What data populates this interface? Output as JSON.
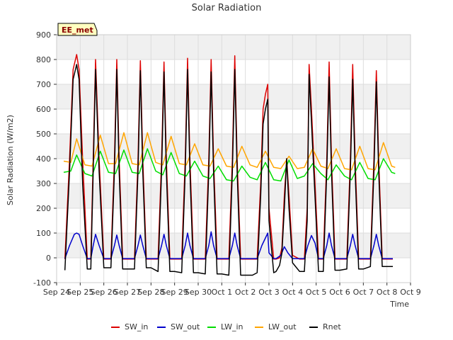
{
  "chart_data": {
    "type": "line",
    "title": "Solar Radiation",
    "xlabel": "Time",
    "ylabel": "Solar Radiation (W/m2)",
    "ylim": [
      -100,
      900
    ],
    "yticks": [
      -100,
      0,
      100,
      200,
      300,
      400,
      500,
      600,
      700,
      800,
      900
    ],
    "xlim": [
      0,
      15
    ],
    "xticks": [
      {
        "pos": 0,
        "label": "Sep 24"
      },
      {
        "pos": 1,
        "label": "Sep 25"
      },
      {
        "pos": 2,
        "label": "Sep 26"
      },
      {
        "pos": 3,
        "label": "Sep 27"
      },
      {
        "pos": 4,
        "label": "Sep 28"
      },
      {
        "pos": 5,
        "label": "Sep 29"
      },
      {
        "pos": 6,
        "label": "Sep 30"
      },
      {
        "pos": 7,
        "label": "Oct 1"
      },
      {
        "pos": 8,
        "label": "Oct 2"
      },
      {
        "pos": 9,
        "label": "Oct 3"
      },
      {
        "pos": 10,
        "label": "Oct 4"
      },
      {
        "pos": 11,
        "label": "Oct 5"
      },
      {
        "pos": 12,
        "label": "Oct 6"
      },
      {
        "pos": 13,
        "label": "Oct 7"
      },
      {
        "pos": 14,
        "label": "Oct 8"
      },
      {
        "pos": 15,
        "label": "Oct 9"
      }
    ],
    "annotation": "EE_met",
    "legend_placement": "bottom",
    "grid": true,
    "series": [
      {
        "name": "SW_in",
        "color": "#dd0000",
        "x": [
          0.35,
          0.55,
          0.7,
          0.85,
          0.95,
          1.1,
          1.3,
          1.45,
          1.55,
          1.65,
          1.8,
          2.0,
          2.3,
          2.45,
          2.55,
          2.65,
          2.8,
          3.0,
          3.3,
          3.45,
          3.55,
          3.65,
          3.8,
          4.0,
          4.3,
          4.45,
          4.55,
          4.65,
          4.8,
          5.0,
          5.3,
          5.45,
          5.55,
          5.65,
          5.8,
          6.0,
          6.3,
          6.45,
          6.55,
          6.65,
          6.8,
          7.0,
          7.3,
          7.45,
          7.55,
          7.65,
          7.8,
          8.0,
          8.3,
          8.5,
          8.65,
          8.75,
          8.85,
          8.95,
          9.0,
          9.2,
          9.3,
          9.45,
          9.55,
          9.65,
          9.75,
          9.85,
          10.0,
          10.3,
          10.5,
          10.62,
          10.7,
          10.8,
          10.95,
          11.1,
          11.3,
          11.45,
          11.55,
          11.65,
          11.8,
          12.0,
          12.3,
          12.45,
          12.55,
          12.65,
          12.8,
          13.0,
          13.3,
          13.45,
          13.55,
          13.65,
          13.8,
          14.0,
          14.25
        ],
        "y": [
          -5,
          400,
          760,
          820,
          760,
          400,
          -5,
          -5,
          400,
          800,
          400,
          -5,
          -5,
          400,
          800,
          400,
          -5,
          -5,
          -5,
          400,
          795,
          400,
          -5,
          -5,
          -5,
          400,
          790,
          400,
          -5,
          -5,
          -5,
          400,
          805,
          400,
          -5,
          -5,
          -5,
          400,
          800,
          400,
          -5,
          -5,
          -5,
          400,
          815,
          400,
          -5,
          -5,
          -5,
          -5,
          300,
          600,
          660,
          700,
          200,
          -5,
          -5,
          0,
          40,
          250,
          400,
          250,
          10,
          -5,
          -5,
          200,
          780,
          600,
          300,
          -5,
          -5,
          400,
          790,
          400,
          -5,
          -5,
          -5,
          400,
          780,
          400,
          -5,
          -5,
          -5,
          400,
          755,
          400,
          -5,
          -5,
          -5
        ]
      },
      {
        "name": "SW_out",
        "color": "#0000cc",
        "x": [
          0.35,
          0.55,
          0.75,
          0.85,
          0.95,
          1.1,
          1.3,
          1.45,
          1.55,
          1.65,
          1.8,
          2.0,
          2.3,
          2.45,
          2.55,
          2.65,
          2.8,
          3.0,
          3.3,
          3.45,
          3.55,
          3.65,
          3.8,
          4.0,
          4.3,
          4.45,
          4.55,
          4.65,
          4.8,
          5.0,
          5.3,
          5.45,
          5.55,
          5.65,
          5.8,
          6.0,
          6.3,
          6.45,
          6.55,
          6.65,
          6.8,
          7.0,
          7.3,
          7.45,
          7.55,
          7.65,
          7.8,
          8.0,
          8.3,
          8.5,
          8.7,
          8.85,
          8.95,
          9.0,
          9.2,
          9.3,
          9.5,
          9.65,
          9.8,
          10.0,
          10.3,
          10.5,
          10.65,
          10.8,
          10.95,
          11.1,
          11.3,
          11.45,
          11.55,
          11.65,
          11.8,
          12.0,
          12.3,
          12.45,
          12.55,
          12.65,
          12.8,
          13.0,
          13.3,
          13.45,
          13.55,
          13.65,
          13.8,
          14.0,
          14.25
        ],
        "y": [
          -3,
          50,
          95,
          100,
          95,
          50,
          -3,
          -3,
          50,
          95,
          50,
          -3,
          -3,
          50,
          92,
          50,
          -3,
          -3,
          -3,
          50,
          92,
          50,
          -3,
          -3,
          -3,
          50,
          95,
          50,
          -3,
          -3,
          -3,
          50,
          100,
          50,
          -3,
          -3,
          -3,
          50,
          105,
          50,
          -3,
          -3,
          -3,
          50,
          100,
          50,
          -3,
          -3,
          -3,
          -3,
          50,
          80,
          100,
          20,
          -3,
          -3,
          10,
          45,
          20,
          -3,
          -3,
          -3,
          50,
          90,
          60,
          -3,
          -3,
          50,
          100,
          50,
          -3,
          -3,
          -3,
          50,
          95,
          50,
          -3,
          -3,
          -3,
          50,
          95,
          50,
          -3,
          -3,
          -3
        ]
      },
      {
        "name": "LW_in",
        "color": "#00dd00",
        "x": [
          0.3,
          0.6,
          0.85,
          1.2,
          1.5,
          1.85,
          2.2,
          2.5,
          2.85,
          3.2,
          3.5,
          3.85,
          4.2,
          4.5,
          4.85,
          5.2,
          5.5,
          5.85,
          6.2,
          6.5,
          6.85,
          7.2,
          7.5,
          7.85,
          8.2,
          8.5,
          8.85,
          9.2,
          9.5,
          9.85,
          10.2,
          10.5,
          10.85,
          11.2,
          11.5,
          11.85,
          12.2,
          12.5,
          12.85,
          13.2,
          13.5,
          13.85,
          14.2,
          14.35
        ],
        "y": [
          345,
          350,
          415,
          340,
          330,
          430,
          345,
          340,
          435,
          345,
          340,
          440,
          350,
          335,
          425,
          340,
          330,
          390,
          330,
          320,
          370,
          315,
          310,
          370,
          325,
          315,
          385,
          315,
          310,
          395,
          320,
          330,
          380,
          340,
          315,
          375,
          330,
          315,
          385,
          320,
          315,
          400,
          345,
          340
        ]
      },
      {
        "name": "LW_out",
        "color": "#ffa500",
        "x": [
          0.3,
          0.6,
          0.85,
          1.2,
          1.5,
          1.85,
          2.2,
          2.5,
          2.85,
          3.2,
          3.5,
          3.85,
          4.2,
          4.5,
          4.85,
          5.2,
          5.5,
          5.85,
          6.2,
          6.5,
          6.85,
          7.2,
          7.5,
          7.85,
          8.2,
          8.5,
          8.85,
          9.2,
          9.5,
          9.85,
          10.2,
          10.5,
          10.85,
          11.2,
          11.5,
          11.85,
          12.2,
          12.5,
          12.85,
          13.2,
          13.5,
          13.85,
          14.2,
          14.35
        ],
        "y": [
          390,
          385,
          480,
          375,
          370,
          495,
          380,
          380,
          505,
          380,
          375,
          505,
          385,
          375,
          490,
          380,
          375,
          460,
          375,
          370,
          440,
          370,
          365,
          450,
          375,
          365,
          430,
          365,
          360,
          410,
          360,
          365,
          440,
          370,
          360,
          440,
          360,
          355,
          450,
          360,
          355,
          465,
          370,
          365
        ]
      },
      {
        "name": "Rnet",
        "color": "#000000",
        "x": [
          0.35,
          0.55,
          0.7,
          0.85,
          0.95,
          1.1,
          1.3,
          1.45,
          1.55,
          1.65,
          1.8,
          2.0,
          2.3,
          2.45,
          2.55,
          2.65,
          2.8,
          3.0,
          3.3,
          3.45,
          3.55,
          3.65,
          3.8,
          4.0,
          4.3,
          4.45,
          4.55,
          4.65,
          4.8,
          5.0,
          5.3,
          5.45,
          5.55,
          5.65,
          5.8,
          6.0,
          6.3,
          6.45,
          6.55,
          6.65,
          6.8,
          7.0,
          7.3,
          7.45,
          7.55,
          7.65,
          7.8,
          8.0,
          8.3,
          8.5,
          8.65,
          8.75,
          8.85,
          8.95,
          9.0,
          9.2,
          9.3,
          9.45,
          9.55,
          9.65,
          9.75,
          9.85,
          10.0,
          10.3,
          10.5,
          10.62,
          10.7,
          10.8,
          10.95,
          11.1,
          11.3,
          11.45,
          11.55,
          11.65,
          11.8,
          12.0,
          12.3,
          12.45,
          12.55,
          12.65,
          12.8,
          13.0,
          13.3,
          13.45,
          13.55,
          13.65,
          13.8,
          14.0,
          14.25
        ],
        "y": [
          -50,
          350,
          720,
          780,
          720,
          300,
          -45,
          -45,
          350,
          760,
          350,
          -40,
          -40,
          350,
          760,
          350,
          -45,
          -45,
          -45,
          350,
          755,
          350,
          -40,
          -40,
          -55,
          350,
          750,
          350,
          -55,
          -55,
          -60,
          350,
          760,
          350,
          -60,
          -60,
          -65,
          350,
          750,
          350,
          -65,
          -65,
          -70,
          350,
          760,
          350,
          -70,
          -70,
          -70,
          -60,
          250,
          540,
          600,
          640,
          150,
          -60,
          -55,
          -30,
          20,
          200,
          400,
          200,
          -20,
          -55,
          -55,
          150,
          740,
          550,
          250,
          -55,
          -55,
          350,
          730,
          350,
          -50,
          -50,
          -45,
          350,
          720,
          350,
          -45,
          -45,
          -35,
          350,
          710,
          350,
          -35,
          -35,
          -35
        ]
      }
    ]
  }
}
